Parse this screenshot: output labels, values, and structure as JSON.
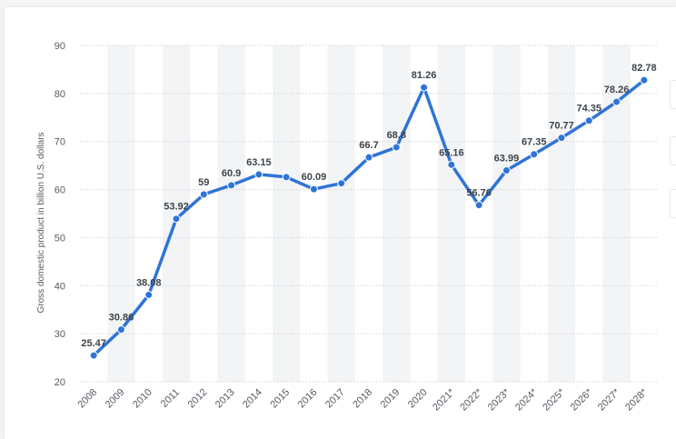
{
  "chart_data": {
    "type": "line",
    "title": "",
    "xlabel": "",
    "ylabel": "Gross domestic product in billion U.S. dollars",
    "ylim": [
      20,
      90
    ],
    "yticks": [
      20,
      30,
      40,
      50,
      60,
      70,
      80,
      90
    ],
    "grid": true,
    "legend": "none",
    "categories": [
      "2008",
      "2009",
      "2010",
      "2011",
      "2012",
      "2013",
      "2014",
      "2015",
      "2016",
      "2017",
      "2018",
      "2019",
      "2020",
      "2021*",
      "2022*",
      "2023*",
      "2024*",
      "2025*",
      "2026*",
      "2027*",
      "2028*"
    ],
    "series": [
      {
        "values": [
          25.47,
          30.86,
          38.08,
          53.92,
          59,
          60.9,
          63.15,
          62.6,
          60.09,
          61.3,
          66.7,
          68.8,
          81.26,
          65.16,
          56.76,
          63.99,
          67.35,
          70.77,
          74.35,
          78.26,
          82.78
        ],
        "labels": [
          "25.47",
          "30.86",
          "38.08",
          "53.92",
          "59",
          "60.9",
          "63.15",
          "",
          "60.09",
          "",
          "66.7",
          "68.8",
          "81.26",
          "65.16",
          "56.76",
          "63.99",
          "67.35",
          "70.77",
          "74.35",
          "78.26",
          "82.78"
        ],
        "color": "#2f74d6"
      }
    ]
  }
}
